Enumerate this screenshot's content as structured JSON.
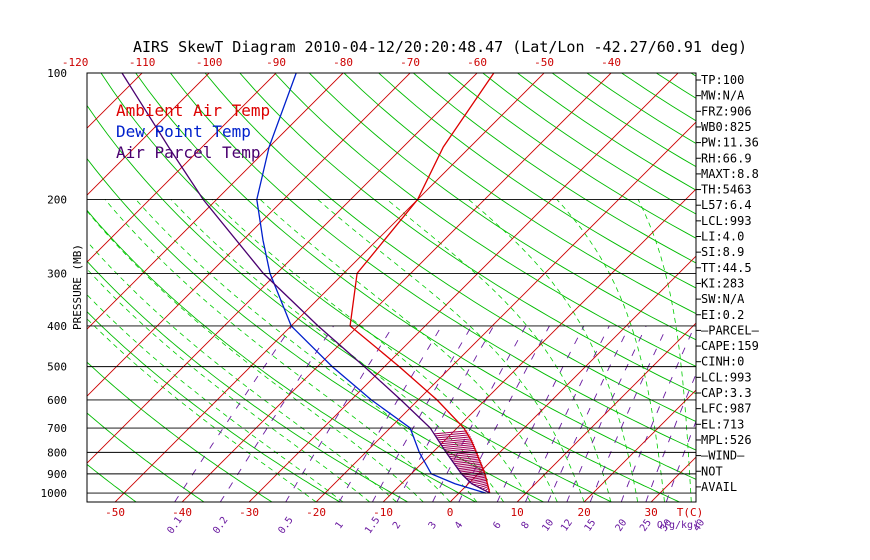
{
  "title": "AIRS SkewT Diagram 2010-04-12/20:20:48.47 (Lat/Lon -42.27/60.91 deg)",
  "legend": [
    {
      "label": "Ambient Air Temp",
      "color": "#dd0000"
    },
    {
      "label": "Dew Point Temp",
      "color": "#0020cc"
    },
    {
      "label": "Air Parcel Temp",
      "color": "#4a0070"
    }
  ],
  "colors": {
    "isotherm": "#cc0000",
    "dry_adiabat": "#00bb00",
    "moist_adiabat": "#00cc00",
    "mixing_ratio": "#6a1aa0",
    "cape_hatch": "#a0005a"
  },
  "chart_data": {
    "type": "line",
    "y_scale": "log-pressure",
    "ylabel": "PRESSURE (MB)",
    "ylim": [
      1050,
      100
    ],
    "pressure_ticks": [
      100,
      200,
      300,
      400,
      500,
      600,
      700,
      800,
      900,
      1000
    ],
    "top_temp_ticks": [
      -120,
      -110,
      -100,
      -90,
      -80,
      -70,
      -60,
      -50,
      -40
    ],
    "bottom_temp_ticks": [
      -50,
      -40,
      -30,
      -20,
      -10,
      0,
      10,
      20,
      30
    ],
    "bottom_unit_label": "T(C)",
    "mixing_ratio_labels": [
      "0.1",
      "0.2",
      "0.5",
      "1",
      "1.5",
      "2",
      "3",
      "4",
      "6",
      "8",
      "10",
      "12",
      "15",
      "20",
      "25",
      "30",
      "40"
    ],
    "mixing_ratio_unit": "Q(g/kg)",
    "series": [
      {
        "name": "Ambient Air Temp",
        "points": [
          {
            "p": 1000,
            "t": 4.6
          },
          {
            "p": 900,
            "t": 1.0
          },
          {
            "p": 800,
            "t": -3.5
          },
          {
            "p": 750,
            "t": -6.0
          },
          {
            "p": 700,
            "t": -9.0
          },
          {
            "p": 600,
            "t": -17.2
          },
          {
            "p": 500,
            "t": -27.8
          },
          {
            "p": 400,
            "t": -41.2
          },
          {
            "p": 300,
            "t": -48.0
          },
          {
            "p": 200,
            "t": -50.0
          },
          {
            "p": 150,
            "t": -54.0
          },
          {
            "p": 100,
            "t": -57.5
          }
        ]
      },
      {
        "name": "Dew Point Temp",
        "points": [
          {
            "p": 1000,
            "t": 4.0
          },
          {
            "p": 950,
            "t": -2.0
          },
          {
            "p": 900,
            "t": -7.0
          },
          {
            "p": 800,
            "t": -12.0
          },
          {
            "p": 700,
            "t": -17.0
          },
          {
            "p": 600,
            "t": -27.0
          },
          {
            "p": 500,
            "t": -37.8
          },
          {
            "p": 400,
            "t": -50.0
          },
          {
            "p": 300,
            "t": -61.0
          },
          {
            "p": 250,
            "t": -67.0
          },
          {
            "p": 200,
            "t": -74.0
          },
          {
            "p": 150,
            "t": -80.0
          },
          {
            "p": 100,
            "t": -87.0
          }
        ]
      },
      {
        "name": "Air Parcel Temp",
        "points": [
          {
            "p": 1000,
            "t": 4.6
          },
          {
            "p": 950,
            "t": 0.5
          },
          {
            "p": 900,
            "t": -2.5
          },
          {
            "p": 800,
            "t": -8.0
          },
          {
            "p": 700,
            "t": -14.0
          },
          {
            "p": 600,
            "t": -22.6
          },
          {
            "p": 500,
            "t": -33.0
          },
          {
            "p": 400,
            "t": -46.0
          },
          {
            "p": 300,
            "t": -62.0
          },
          {
            "p": 200,
            "t": -82.0
          },
          {
            "p": 150,
            "t": -95.0
          },
          {
            "p": 100,
            "t": -113.0
          }
        ]
      }
    ]
  },
  "indices": [
    "TP:100",
    "MW:N/A",
    "FRZ:906",
    "WB0:825",
    "PW:11.36",
    "RH:66.9",
    "MAXT:8.8",
    "TH:5463",
    "L57:6.4",
    "LCL:993",
    "LI:4.0",
    "SI:8.9",
    "TT:44.5",
    "KI:283",
    "SW:N/A",
    "EI:0.2",
    "—PARCEL—",
    "CAPE:159",
    "CINH:0",
    "LCL:993",
    "CAP:3.3",
    "LFC:987",
    "EL:713",
    "MPL:526",
    "—WIND—",
    "NOT",
    "AVAIL"
  ]
}
